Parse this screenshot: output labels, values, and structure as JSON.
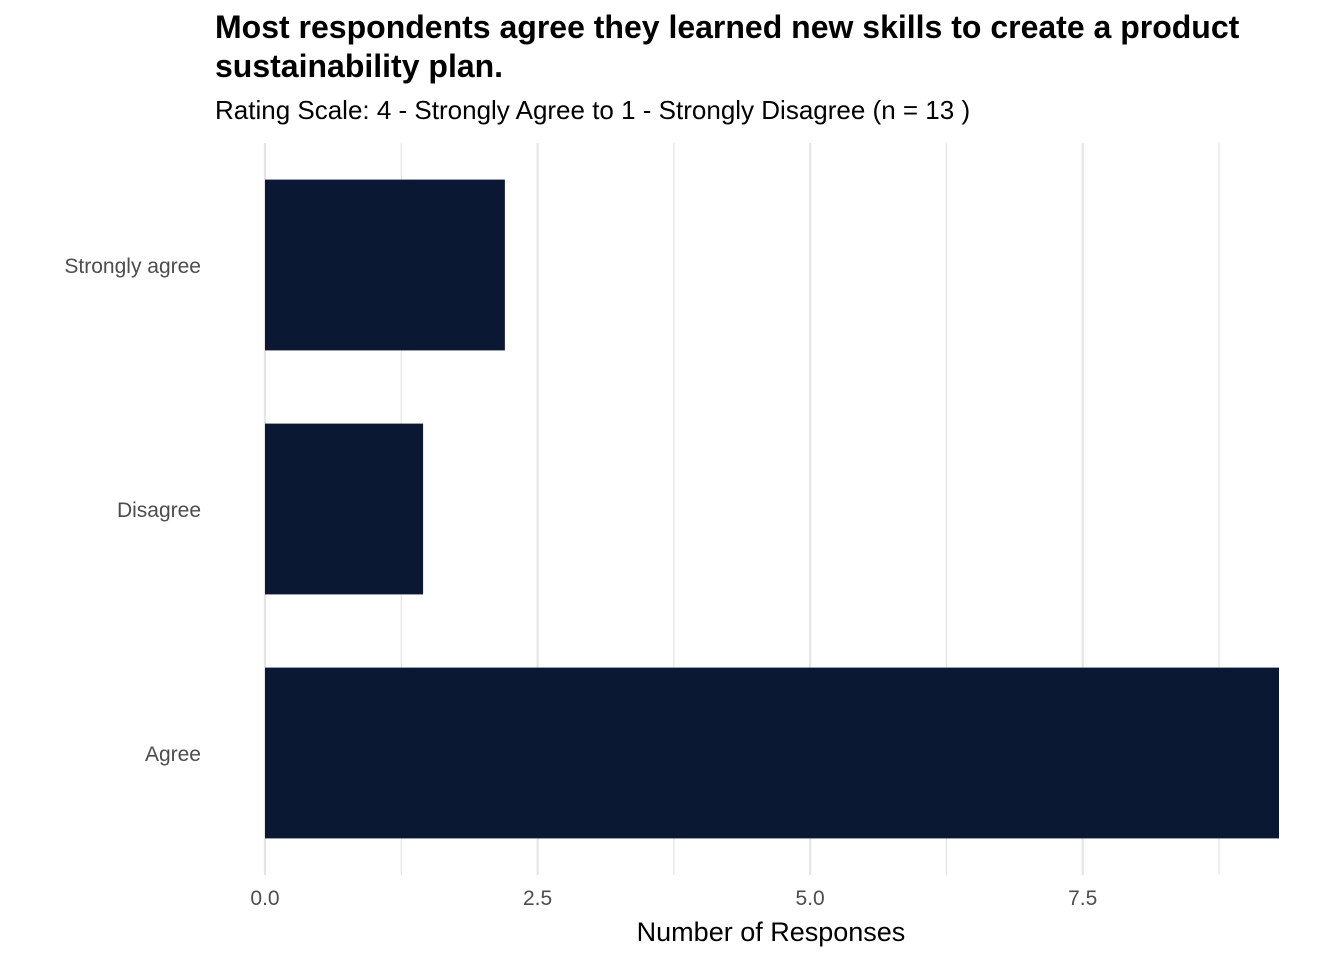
{
  "chart_data": {
    "type": "bar",
    "orientation": "horizontal",
    "title": "Most respondents agree they learned new skills to create a product sustainability plan.",
    "subtitle": "Rating Scale: 4 - Strongly Agree to 1 - Strongly Disagree (n = 13 )",
    "xlabel": "Number of Responses",
    "ylabel": "",
    "categories": [
      "Strongly agree",
      "Disagree",
      "Agree"
    ],
    "values": [
      2.2,
      1.45,
      9.3
    ],
    "xlim": [
      0,
      9.3
    ],
    "x_ticks": [
      "0.0",
      "2.5",
      "5.0",
      "7.5"
    ],
    "grid": true,
    "legend": "none",
    "colors": {
      "bar": "#0a1833",
      "grid": "#e5e5e5",
      "tick_text": "#4d4d4d"
    }
  }
}
